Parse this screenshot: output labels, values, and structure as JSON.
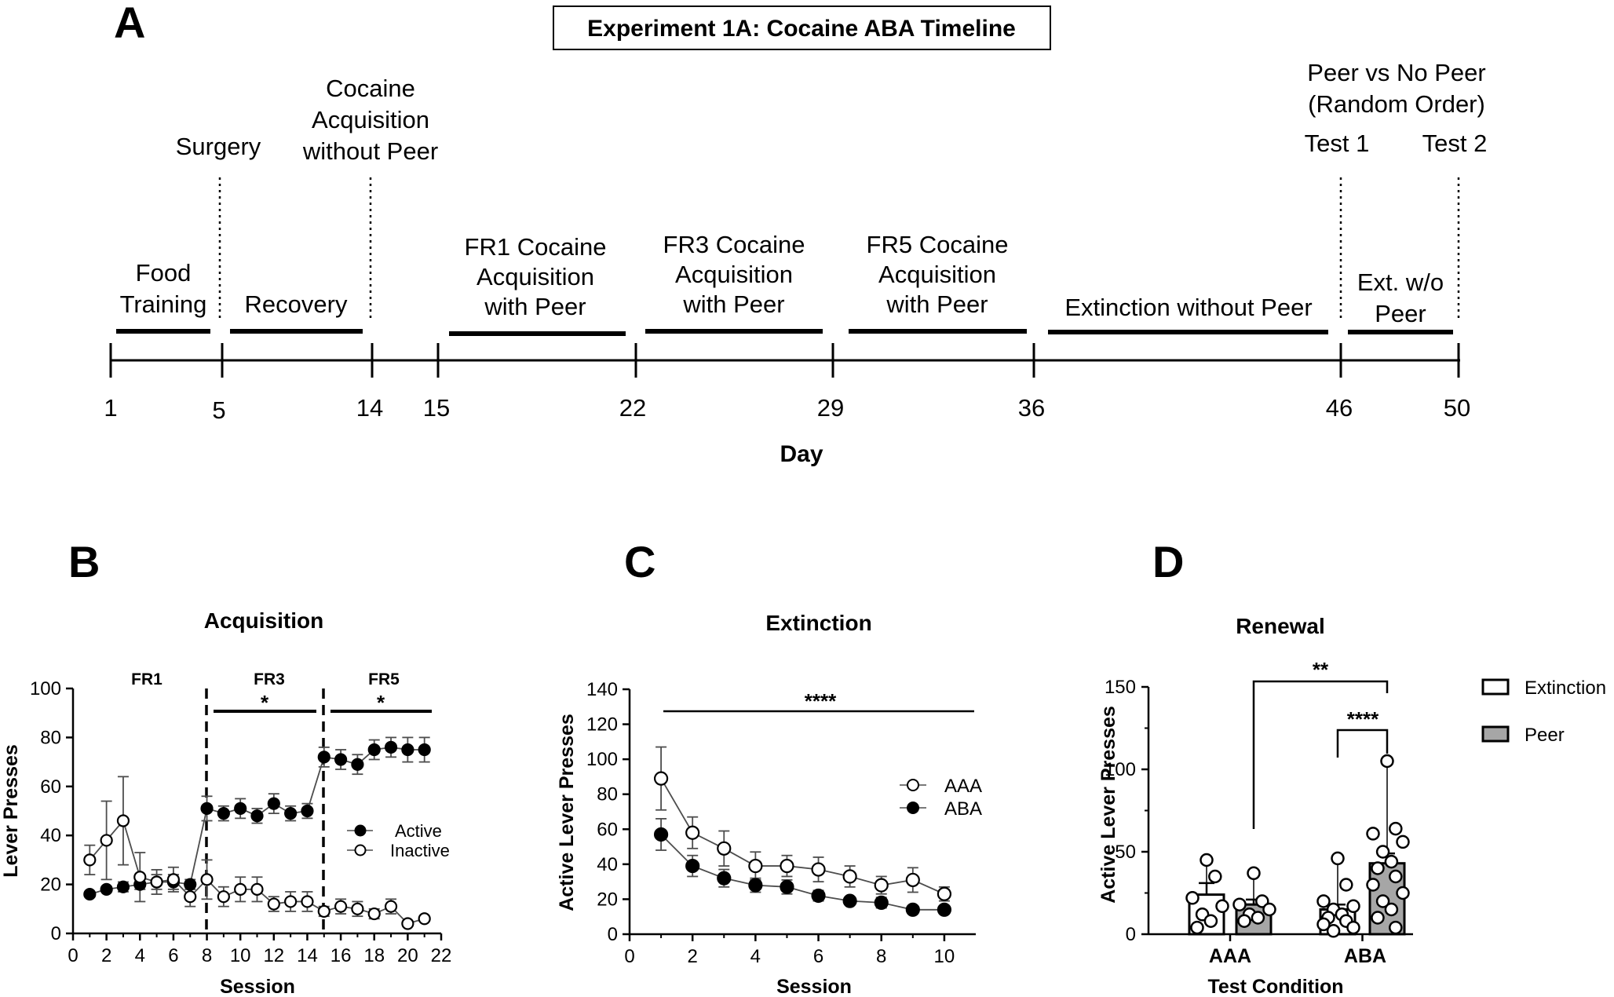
{
  "panel_a": {
    "letter": "A",
    "title": "Experiment 1A: Cocaine ABA Timeline",
    "axis_label": "Day",
    "days": [
      "1",
      "5",
      "14",
      "15",
      "22",
      "29",
      "36",
      "46",
      "50"
    ],
    "top_labels": [
      {
        "lines": [
          "Surgery"
        ]
      },
      {
        "lines": [
          "Cocaine",
          "Acquisition",
          "without Peer"
        ]
      },
      {
        "lines": [
          "Peer vs No Peer",
          "(Random Order)"
        ]
      },
      {
        "lines": [
          "Test 1"
        ]
      },
      {
        "lines": [
          "Test 2"
        ]
      }
    ],
    "phases": [
      {
        "lines": [
          "Food",
          "Training"
        ]
      },
      {
        "lines": [
          "Recovery"
        ]
      },
      {
        "lines": [
          "FR1 Cocaine",
          "Acquisition",
          "with Peer"
        ]
      },
      {
        "lines": [
          "FR3 Cocaine",
          "Acquisition",
          "with Peer"
        ]
      },
      {
        "lines": [
          "FR5 Cocaine",
          "Acquisition",
          "with Peer"
        ]
      },
      {
        "lines": [
          "Extinction without Peer"
        ]
      },
      {
        "lines": [
          "Ext. w/o",
          "Peer"
        ]
      }
    ]
  },
  "chart_data": [
    {
      "panel": "B",
      "type": "line",
      "title": "Acquisition",
      "xlabel": "Session",
      "ylabel": "Lever Presses",
      "xlim": [
        0,
        22
      ],
      "ylim": [
        0,
        100
      ],
      "xticks": [
        "0",
        "2",
        "4",
        "6",
        "8",
        "10",
        "12",
        "14",
        "16",
        "18",
        "20",
        "22"
      ],
      "yticks": [
        "0",
        "20",
        "40",
        "60",
        "80",
        "100"
      ],
      "phases": [
        "FR1",
        "FR3",
        "FR5"
      ],
      "significance": [
        "*",
        "*"
      ],
      "legend": {
        "position": "right",
        "entries": [
          "Active",
          "Inactive"
        ]
      },
      "x": [
        1,
        2,
        3,
        4,
        5,
        6,
        7,
        8,
        9,
        10,
        11,
        12,
        13,
        14,
        15,
        16,
        17,
        18,
        19,
        20,
        21
      ],
      "series": [
        {
          "name": "Active",
          "marker": "filled",
          "values": [
            16,
            18,
            19,
            20,
            21,
            21,
            20,
            51,
            49,
            51,
            48,
            53,
            49,
            50,
            72,
            71,
            69,
            75,
            76,
            75,
            75
          ],
          "errors": [
            1,
            1,
            2,
            2,
            3,
            3,
            2,
            5,
            3,
            4,
            3,
            4,
            3,
            3,
            4,
            4,
            4,
            4,
            4,
            5,
            5
          ]
        },
        {
          "name": "Inactive",
          "marker": "open",
          "values": [
            30,
            38,
            46,
            23,
            21,
            22,
            15,
            22,
            15,
            18,
            18,
            12,
            13,
            13,
            9,
            11,
            10,
            8,
            11,
            4,
            6
          ],
          "errors": [
            6,
            16,
            18,
            10,
            5,
            5,
            4,
            8,
            4,
            5,
            5,
            3,
            4,
            4,
            2,
            3,
            3,
            2,
            3,
            1,
            1
          ]
        }
      ]
    },
    {
      "panel": "C",
      "type": "line",
      "title": "Extinction",
      "xlabel": "Session",
      "ylabel": "Active Lever Presses",
      "xlim": [
        0,
        11
      ],
      "ylim": [
        0,
        140
      ],
      "xticks": [
        "0",
        "2",
        "4",
        "6",
        "8",
        "10"
      ],
      "yticks": [
        "0",
        "20",
        "40",
        "60",
        "80",
        "100",
        "120",
        "140"
      ],
      "significance": [
        "****"
      ],
      "legend": {
        "position": "right",
        "entries": [
          "AAA",
          "ABA"
        ]
      },
      "x": [
        1,
        2,
        3,
        4,
        5,
        6,
        7,
        8,
        9,
        10
      ],
      "series": [
        {
          "name": "AAA",
          "marker": "open",
          "values": [
            89,
            58,
            49,
            39,
            39,
            37,
            33,
            28,
            31,
            23
          ],
          "errors": [
            18,
            9,
            10,
            8,
            6,
            7,
            6,
            5,
            7,
            4
          ]
        },
        {
          "name": "ABA",
          "marker": "filled",
          "values": [
            57,
            39,
            32,
            28,
            27,
            22,
            19,
            18,
            14,
            14
          ],
          "errors": [
            9,
            6,
            5,
            4,
            4,
            3,
            2,
            3,
            2,
            2
          ]
        }
      ]
    },
    {
      "panel": "D",
      "type": "bar",
      "title": "Renewal",
      "xlabel": "Test Condition",
      "ylabel": "Active Lever Presses",
      "ylim": [
        0,
        150
      ],
      "yticks": [
        "0",
        "50",
        "100",
        "150"
      ],
      "categories": [
        "AAA",
        "ABA"
      ],
      "significance": [
        "**",
        "****"
      ],
      "legend": {
        "position": "right",
        "entries": [
          "Extinction",
          "Peer"
        ]
      },
      "series": [
        {
          "name": "Extinction",
          "color": "#ffffff",
          "values": [
            24,
            15
          ],
          "errors": [
            7,
            3
          ],
          "points": [
            [
              45,
              35,
              22,
              17,
              12,
              8,
              4
            ],
            [
              46,
              30,
              20,
              17,
              15,
              12,
              10,
              8,
              6,
              4,
              2
            ]
          ]
        },
        {
          "name": "Peer",
          "color": "#a6a6a6",
          "values": [
            18,
            43
          ],
          "errors": [
            3,
            6
          ],
          "points": [
            [
              37,
              20,
              18,
              15,
              12,
              10,
              8
            ],
            [
              105,
              64,
              61,
              56,
              50,
              44,
              40,
              35,
              30,
              25,
              20,
              15,
              10,
              4
            ]
          ]
        }
      ]
    }
  ]
}
